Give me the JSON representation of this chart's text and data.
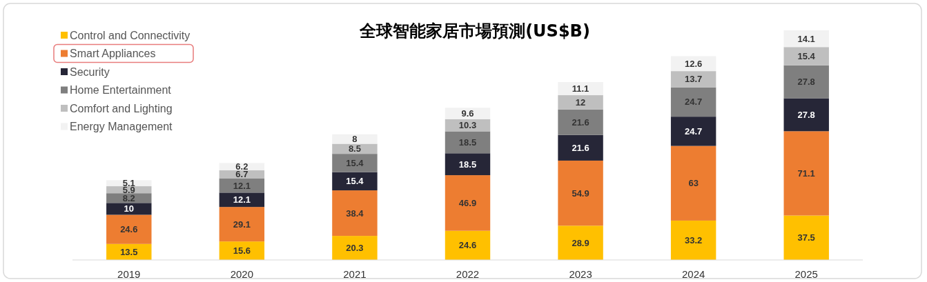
{
  "chart_data": {
    "type": "bar",
    "title": "全球智能家居市場預測(US$B)",
    "stacked": true,
    "data_labels": true,
    "legend": "top left",
    "categories": [
      "2019",
      "2020",
      "2021",
      "2022",
      "2023",
      "2024",
      "2025"
    ],
    "series": [
      {
        "name": "Control and Connectivity",
        "color": "#ffc000",
        "values": [
          13.5,
          15.6,
          20.3,
          24.6,
          28.9,
          33.2,
          37.5
        ]
      },
      {
        "name": "Smart Appliances",
        "color": "#ed7d31",
        "values": [
          24.6,
          29.1,
          38.4,
          46.9,
          54.9,
          63,
          71.1
        ]
      },
      {
        "name": "Security",
        "color": "#262637",
        "values": [
          10,
          12.1,
          15.4,
          18.5,
          21.6,
          24.7,
          27.8
        ]
      },
      {
        "name": "Home Entertainment",
        "color": "#7f7f7f",
        "values": [
          8.2,
          12.1,
          15.4,
          18.5,
          21.6,
          24.7,
          27.8
        ]
      },
      {
        "name": "Comfort and Lighting",
        "color": "#bfbfbf",
        "values": [
          5.9,
          6.7,
          8.5,
          10.3,
          12,
          13.7,
          15.4
        ]
      },
      {
        "name": "Energy Management",
        "color": "#f2f2f2",
        "values": [
          5.1,
          6.2,
          8,
          9.6,
          11.1,
          12.6,
          14.1
        ]
      }
    ]
  }
}
